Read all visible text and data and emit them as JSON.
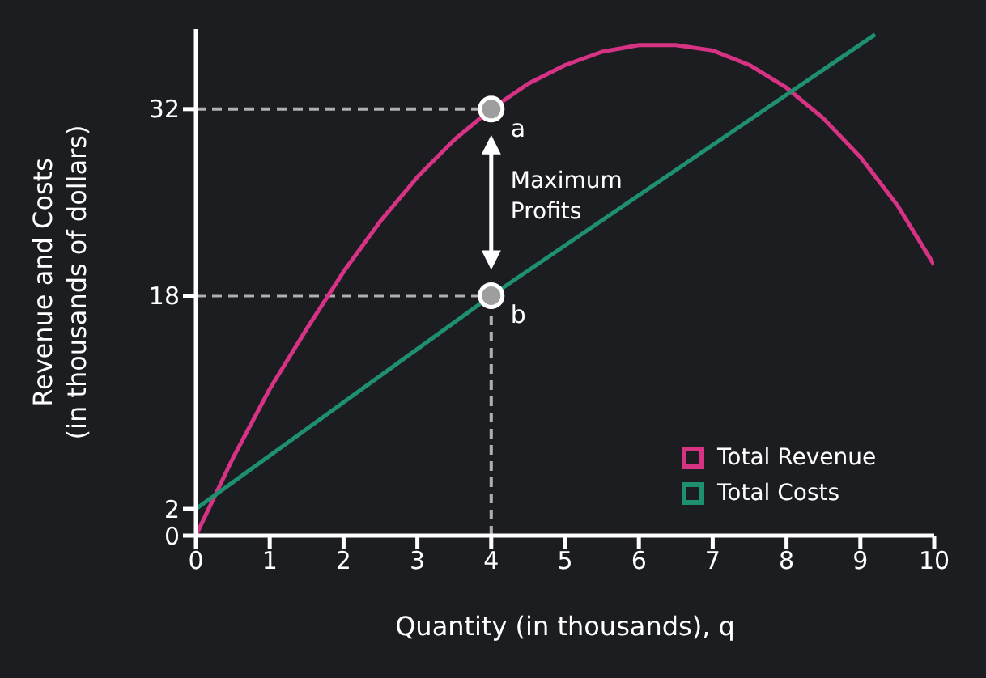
{
  "chart_data": {
    "type": "line",
    "xlabel": "Quantity (in thousands), q",
    "ylabel": "Revenue and Costs (in thousands of dollars)",
    "xlim": [
      0,
      10
    ],
    "ylim": [
      0,
      38
    ],
    "xticks": [
      0,
      1,
      2,
      3,
      4,
      5,
      6,
      7,
      8,
      9,
      10
    ],
    "yticks": [
      0,
      2,
      18,
      32
    ],
    "legend": "bottom right",
    "marker": "none",
    "line_style": "solid",
    "series": [
      {
        "name": "Total Revenue",
        "color": "#d63384",
        "x": [
          0,
          0.5,
          1,
          1.5,
          2,
          2.5,
          3,
          3.5,
          4,
          4.5,
          5,
          5.5,
          6,
          6.5,
          7,
          7.5,
          8,
          8.5,
          9,
          9.5,
          10
        ],
        "values": [
          0,
          5.8,
          11,
          15.5,
          19.8,
          23.6,
          26.9,
          29.7,
          32,
          33.9,
          35.3,
          36.3,
          36.8,
          36.8,
          36.4,
          35.3,
          33.6,
          31.3,
          28.4,
          24.8,
          20.3
        ]
      },
      {
        "name": "Total Costs",
        "color": "#1e9070",
        "x": [
          0,
          4,
          9.2
        ],
        "values": [
          2,
          18,
          37.6
        ]
      },
      {
        "type": "scatter",
        "color": "#9e9e9e",
        "marker": "circle",
        "x": [
          4,
          4
        ],
        "values": [
          32,
          18
        ]
      }
    ],
    "ref_lines": [
      {
        "axis": "y",
        "value": 32,
        "color": "#b0b0b0",
        "line_style": "dashed"
      },
      {
        "axis": "y",
        "value": 18,
        "color": "#b0b0b0",
        "line_style": "dashed"
      },
      {
        "axis": "x",
        "value": 4,
        "color": "#b0b0b0",
        "line_style": "dashed"
      }
    ],
    "annotations": [
      {
        "text": "a",
        "x": 4,
        "y": 32
      },
      {
        "text": "b",
        "x": 4,
        "y": 18
      },
      "Maximum Profits"
    ]
  }
}
